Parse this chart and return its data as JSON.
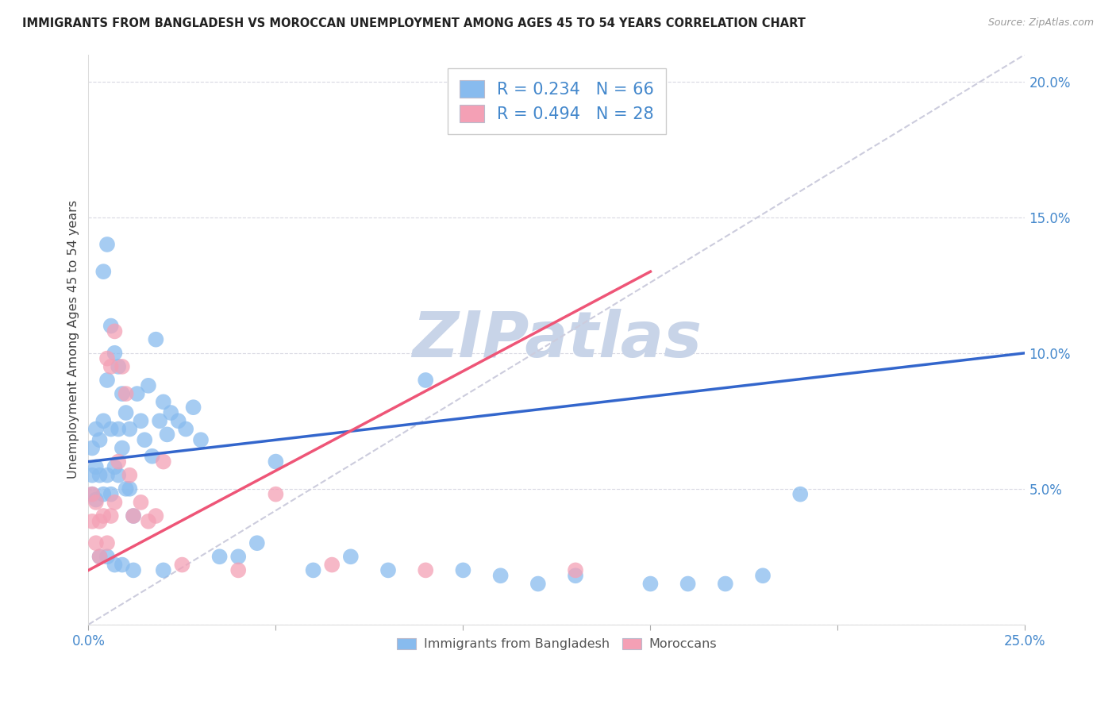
{
  "title": "IMMIGRANTS FROM BANGLADESH VS MOROCCAN UNEMPLOYMENT AMONG AGES 45 TO 54 YEARS CORRELATION CHART",
  "source": "Source: ZipAtlas.com",
  "ylabel": "Unemployment Among Ages 45 to 54 years",
  "xlim": [
    0.0,
    0.25
  ],
  "ylim": [
    0.0,
    0.21
  ],
  "xtick_positions": [
    0.0,
    0.05,
    0.1,
    0.15,
    0.2,
    0.25
  ],
  "xtick_labels": [
    "0.0%",
    "",
    "",
    "",
    "",
    "25.0%"
  ],
  "ytick_positions": [
    0.0,
    0.05,
    0.1,
    0.15,
    0.2
  ],
  "ytick_labels": [
    "",
    "5.0%",
    "10.0%",
    "15.0%",
    "20.0%"
  ],
  "bangladesh_color": "#88bbee",
  "moroccan_color": "#f4a0b5",
  "bangladesh_line_color": "#3366cc",
  "moroccan_line_color": "#ee5577",
  "dashed_line_color": "#ccccdd",
  "watermark": "ZIPatlas",
  "watermark_color": "#c8d4e8",
  "tick_color": "#4488cc",
  "legend_blue_text": "R = 0.234   N = 66",
  "legend_pink_text": "R = 0.494   N = 28",
  "bottom_label_blue": "Immigrants from Bangladesh",
  "bottom_label_pink": "Moroccans",
  "bangladesh_x": [
    0.001,
    0.001,
    0.001,
    0.002,
    0.002,
    0.002,
    0.003,
    0.003,
    0.004,
    0.004,
    0.004,
    0.005,
    0.005,
    0.005,
    0.006,
    0.006,
    0.006,
    0.007,
    0.007,
    0.008,
    0.008,
    0.008,
    0.009,
    0.009,
    0.01,
    0.01,
    0.011,
    0.011,
    0.012,
    0.013,
    0.014,
    0.015,
    0.016,
    0.017,
    0.018,
    0.019,
    0.02,
    0.021,
    0.022,
    0.024,
    0.026,
    0.028,
    0.03,
    0.035,
    0.04,
    0.045,
    0.05,
    0.06,
    0.07,
    0.08,
    0.09,
    0.1,
    0.11,
    0.12,
    0.13,
    0.15,
    0.16,
    0.17,
    0.18,
    0.19,
    0.003,
    0.005,
    0.007,
    0.009,
    0.012,
    0.02
  ],
  "bangladesh_y": [
    0.065,
    0.055,
    0.048,
    0.072,
    0.058,
    0.046,
    0.068,
    0.055,
    0.13,
    0.075,
    0.048,
    0.14,
    0.09,
    0.055,
    0.11,
    0.072,
    0.048,
    0.1,
    0.058,
    0.095,
    0.072,
    0.055,
    0.085,
    0.065,
    0.078,
    0.05,
    0.072,
    0.05,
    0.04,
    0.085,
    0.075,
    0.068,
    0.088,
    0.062,
    0.105,
    0.075,
    0.082,
    0.07,
    0.078,
    0.075,
    0.072,
    0.08,
    0.068,
    0.025,
    0.025,
    0.03,
    0.06,
    0.02,
    0.025,
    0.02,
    0.09,
    0.02,
    0.018,
    0.015,
    0.018,
    0.015,
    0.015,
    0.015,
    0.018,
    0.048,
    0.025,
    0.025,
    0.022,
    0.022,
    0.02,
    0.02
  ],
  "moroccan_x": [
    0.001,
    0.001,
    0.002,
    0.002,
    0.003,
    0.003,
    0.004,
    0.005,
    0.005,
    0.006,
    0.006,
    0.007,
    0.007,
    0.008,
    0.009,
    0.01,
    0.011,
    0.012,
    0.014,
    0.016,
    0.018,
    0.02,
    0.025,
    0.04,
    0.05,
    0.065,
    0.09,
    0.13
  ],
  "moroccan_y": [
    0.048,
    0.038,
    0.045,
    0.03,
    0.038,
    0.025,
    0.04,
    0.098,
    0.03,
    0.095,
    0.04,
    0.108,
    0.045,
    0.06,
    0.095,
    0.085,
    0.055,
    0.04,
    0.045,
    0.038,
    0.04,
    0.06,
    0.022,
    0.02,
    0.048,
    0.022,
    0.02,
    0.02
  ]
}
